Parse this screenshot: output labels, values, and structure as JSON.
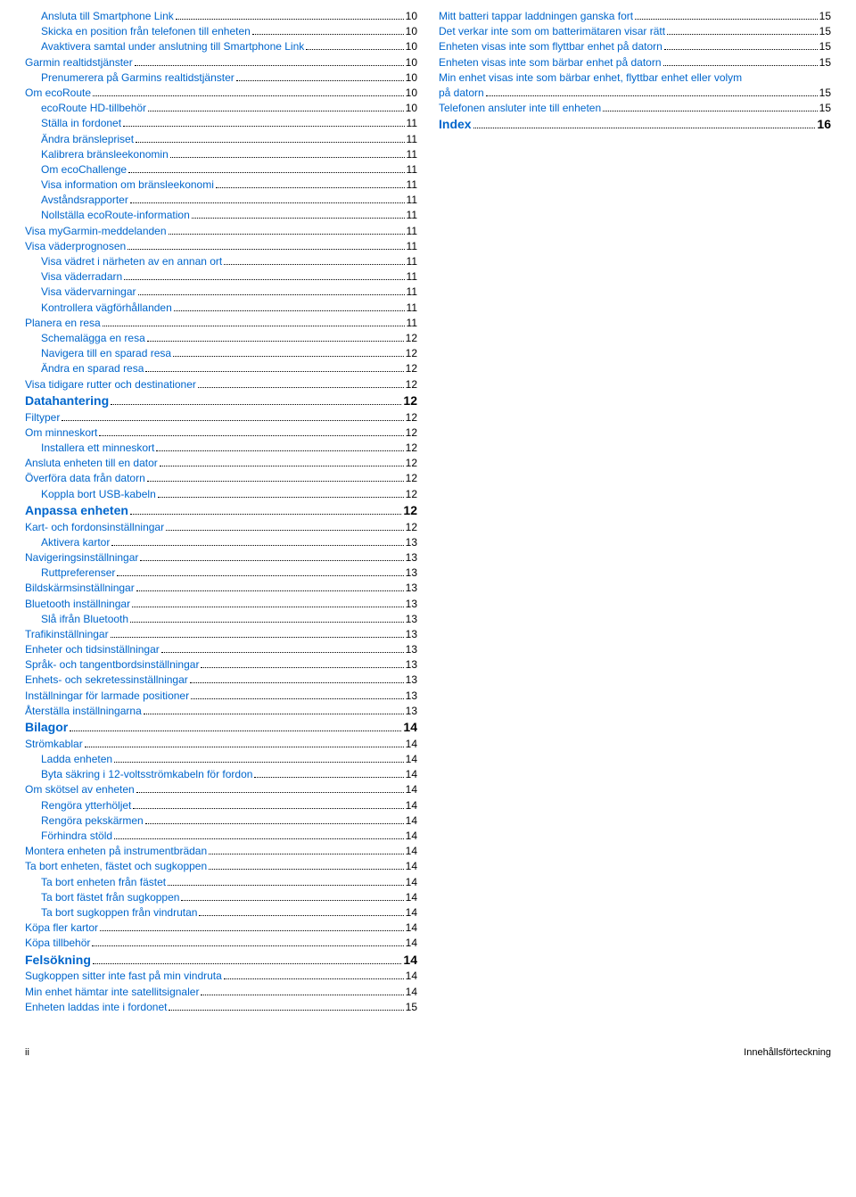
{
  "footer": {
    "left": "ii",
    "right": "Innehållsförteckning"
  },
  "left": [
    {
      "label": "Ansluta till Smartphone Link",
      "page": "10",
      "level": 1,
      "section": false
    },
    {
      "label": "Skicka en position från telefonen till enheten",
      "page": "10",
      "level": 1,
      "section": false
    },
    {
      "label": "Avaktivera samtal under anslutning till Smartphone Link",
      "page": "10",
      "level": 1,
      "section": false
    },
    {
      "label": "Garmin realtidstjänster",
      "page": "10",
      "level": 0,
      "section": false
    },
    {
      "label": "Prenumerera på Garmins realtidstjänster",
      "page": "10",
      "level": 1,
      "section": false
    },
    {
      "label": "Om ecoRoute",
      "page": "10",
      "level": 0,
      "section": false
    },
    {
      "label": "ecoRoute HD-tillbehör",
      "page": "10",
      "level": 1,
      "section": false
    },
    {
      "label": "Ställa in fordonet",
      "page": "11",
      "level": 1,
      "section": false
    },
    {
      "label": "Ändra bränslepriset",
      "page": "11",
      "level": 1,
      "section": false
    },
    {
      "label": "Kalibrera bränsleekonomin",
      "page": "11",
      "level": 1,
      "section": false
    },
    {
      "label": "Om ecoChallenge",
      "page": "11",
      "level": 1,
      "section": false
    },
    {
      "label": "Visa information om bränsleekonomi",
      "page": "11",
      "level": 1,
      "section": false
    },
    {
      "label": "Avståndsrapporter",
      "page": "11",
      "level": 1,
      "section": false
    },
    {
      "label": "Nollställa ecoRoute-information",
      "page": "11",
      "level": 1,
      "section": false
    },
    {
      "label": "Visa myGarmin-meddelanden",
      "page": "11",
      "level": 0,
      "section": false
    },
    {
      "label": "Visa väderprognosen",
      "page": "11",
      "level": 0,
      "section": false
    },
    {
      "label": "Visa vädret i närheten av en annan ort",
      "page": "11",
      "level": 1,
      "section": false
    },
    {
      "label": "Visa väderradarn",
      "page": "11",
      "level": 1,
      "section": false
    },
    {
      "label": "Visa vädervarningar",
      "page": "11",
      "level": 1,
      "section": false
    },
    {
      "label": "Kontrollera vägförhållanden",
      "page": "11",
      "level": 1,
      "section": false
    },
    {
      "label": "Planera en resa",
      "page": "11",
      "level": 0,
      "section": false
    },
    {
      "label": "Schemalägga en resa",
      "page": "12",
      "level": 1,
      "section": false
    },
    {
      "label": "Navigera till en sparad resa",
      "page": "12",
      "level": 1,
      "section": false
    },
    {
      "label": "Ändra en sparad resa",
      "page": "12",
      "level": 1,
      "section": false
    },
    {
      "label": "Visa tidigare rutter och destinationer",
      "page": "12",
      "level": 0,
      "section": false
    },
    {
      "label": "Datahantering",
      "page": "12",
      "level": 0,
      "section": true
    },
    {
      "label": "Filtyper",
      "page": "12",
      "level": 0,
      "section": false
    },
    {
      "label": "Om minneskort",
      "page": "12",
      "level": 0,
      "section": false
    },
    {
      "label": "Installera ett minneskort",
      "page": "12",
      "level": 1,
      "section": false
    },
    {
      "label": "Ansluta enheten till en dator",
      "page": "12",
      "level": 0,
      "section": false
    },
    {
      "label": "Överföra data från datorn",
      "page": "12",
      "level": 0,
      "section": false
    },
    {
      "label": "Koppla bort USB-kabeln",
      "page": "12",
      "level": 1,
      "section": false
    },
    {
      "label": "Anpassa enheten",
      "page": "12",
      "level": 0,
      "section": true
    },
    {
      "label": "Kart- och fordonsinställningar",
      "page": "12",
      "level": 0,
      "section": false
    },
    {
      "label": "Aktivera kartor",
      "page": "13",
      "level": 1,
      "section": false
    },
    {
      "label": "Navigeringsinställningar",
      "page": "13",
      "level": 0,
      "section": false
    },
    {
      "label": "Ruttpreferenser",
      "page": "13",
      "level": 1,
      "section": false
    },
    {
      "label": "Bildskärmsinställningar",
      "page": "13",
      "level": 0,
      "section": false
    },
    {
      "label": "Bluetooth inställningar",
      "page": "13",
      "level": 0,
      "section": false
    },
    {
      "label": "Slå ifrån Bluetooth",
      "page": "13",
      "level": 1,
      "section": false
    },
    {
      "label": "Trafikinställningar",
      "page": "13",
      "level": 0,
      "section": false
    },
    {
      "label": "Enheter och tidsinställningar",
      "page": "13",
      "level": 0,
      "section": false
    },
    {
      "label": "Språk- och tangentbordsinställningar",
      "page": "13",
      "level": 0,
      "section": false
    },
    {
      "label": "Enhets- och sekretessinställningar",
      "page": "13",
      "level": 0,
      "section": false
    },
    {
      "label": "Inställningar för larmade positioner",
      "page": "13",
      "level": 0,
      "section": false
    },
    {
      "label": "Återställa inställningarna",
      "page": "13",
      "level": 0,
      "section": false
    },
    {
      "label": "Bilagor",
      "page": "14",
      "level": 0,
      "section": true
    },
    {
      "label": "Strömkablar",
      "page": "14",
      "level": 0,
      "section": false
    },
    {
      "label": "Ladda enheten",
      "page": "14",
      "level": 1,
      "section": false
    },
    {
      "label": "Byta säkring i 12-voltsströmkabeln för fordon",
      "page": "14",
      "level": 1,
      "section": false
    },
    {
      "label": "Om skötsel av enheten",
      "page": "14",
      "level": 0,
      "section": false
    },
    {
      "label": "Rengöra ytterhöljet",
      "page": "14",
      "level": 1,
      "section": false
    },
    {
      "label": "Rengöra pekskärmen",
      "page": "14",
      "level": 1,
      "section": false
    },
    {
      "label": "Förhindra stöld",
      "page": "14",
      "level": 1,
      "section": false
    },
    {
      "label": "Montera enheten på instrumentbrädan",
      "page": "14",
      "level": 0,
      "section": false
    },
    {
      "label": "Ta bort enheten, fästet och sugkoppen",
      "page": "14",
      "level": 0,
      "section": false
    },
    {
      "label": "Ta bort enheten från fästet",
      "page": "14",
      "level": 1,
      "section": false
    },
    {
      "label": "Ta bort fästet från sugkoppen",
      "page": "14",
      "level": 1,
      "section": false
    },
    {
      "label": "Ta bort sugkoppen från vindrutan",
      "page": "14",
      "level": 1,
      "section": false
    },
    {
      "label": "Köpa fler kartor",
      "page": "14",
      "level": 0,
      "section": false
    },
    {
      "label": "Köpa tillbehör",
      "page": "14",
      "level": 0,
      "section": false
    },
    {
      "label": "Felsökning",
      "page": "14",
      "level": 0,
      "section": true
    },
    {
      "label": "Sugkoppen sitter inte fast på min vindruta",
      "page": "14",
      "level": 0,
      "section": false
    },
    {
      "label": "Min enhet hämtar inte satellitsignaler",
      "page": "14",
      "level": 0,
      "section": false
    },
    {
      "label": "Enheten laddas inte i fordonet",
      "page": "15",
      "level": 0,
      "section": false
    }
  ],
  "right": [
    {
      "label": "Mitt batteri tappar laddningen ganska fort",
      "page": "15",
      "level": 0,
      "section": false
    },
    {
      "label": "Det verkar inte som om batterimätaren visar rätt",
      "page": "15",
      "level": 0,
      "section": false
    },
    {
      "label": "Enheten visas inte som flyttbar enhet på datorn",
      "page": "15",
      "level": 0,
      "section": false
    },
    {
      "label": "Enheten visas inte som bärbar enhet på datorn",
      "page": "15",
      "level": 0,
      "section": false
    },
    {
      "label": "Min enhet visas inte som bärbar enhet, flyttbar enhet eller volym på datorn",
      "page": "15",
      "level": 0,
      "section": false,
      "wrap": true
    },
    {
      "label": "Telefonen ansluter inte till enheten",
      "page": "15",
      "level": 0,
      "section": false
    },
    {
      "label": "Index",
      "page": "16",
      "level": 0,
      "section": true
    }
  ]
}
